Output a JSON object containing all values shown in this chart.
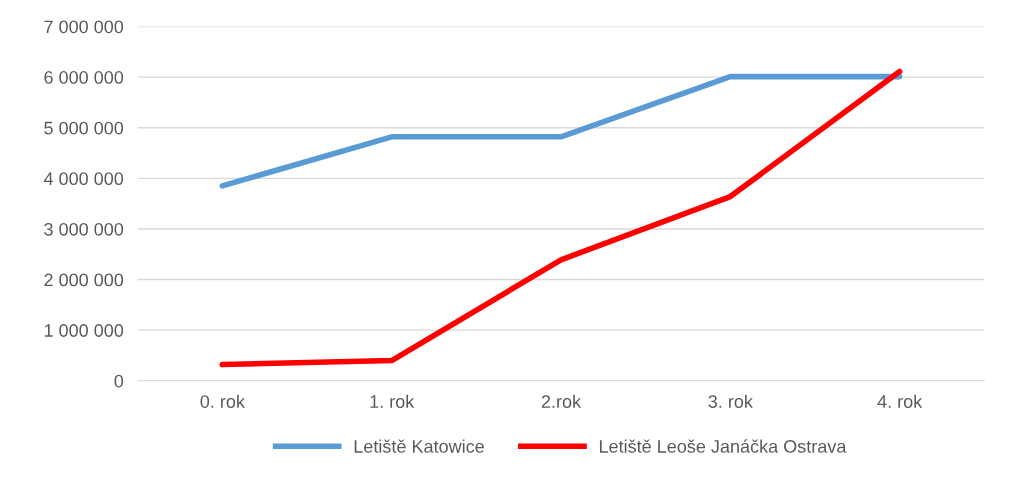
{
  "chart_data": {
    "type": "line",
    "categories": [
      "0. rok",
      "1. rok",
      "2.rok",
      "3. rok",
      "4. rok"
    ],
    "series": [
      {
        "name": "Letiště Katowice",
        "color": "#5b9bd5",
        "values": [
          3850000,
          4820000,
          4820000,
          6010000,
          6010000
        ]
      },
      {
        "name": "Letiště Leoše Janáčka Ostrava",
        "color": "#ff0000",
        "values": [
          320000,
          400000,
          2390000,
          3640000,
          6110000
        ]
      }
    ],
    "ylim": [
      0,
      7000000
    ],
    "yticks": [
      0,
      {
        "value": 1000000,
        "label": "1 000 000"
      },
      {
        "value": 2000000,
        "label": "2 000 000"
      },
      {
        "value": 3000000,
        "label": "3 000 000"
      },
      {
        "value": 4000000,
        "label": "4 000 000"
      },
      {
        "value": 5000000,
        "label": "5 000 000"
      },
      {
        "value": 6000000,
        "label": "6 000 000"
      },
      {
        "value": 7000000,
        "label": "7 000 000"
      }
    ],
    "grid": "y",
    "legend": "bottom",
    "marker": "none",
    "line_style": "solid"
  }
}
